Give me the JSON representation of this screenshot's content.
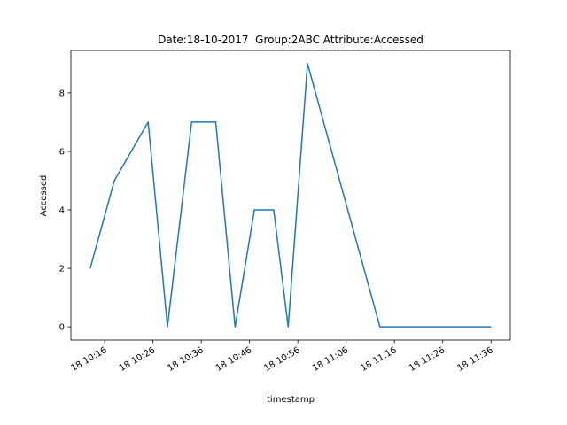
{
  "chart_data": {
    "type": "line",
    "title": "Date:18-10-2017  Group:2ABC Attribute:Accessed",
    "x_label": "timestamp",
    "y_label": "Accessed",
    "x": [
      "18 10:13",
      "18 10:18",
      "18 10:25",
      "18 10:29",
      "18 10:34",
      "18 10:39",
      "18 10:43",
      "18 10:47",
      "18 10:51",
      "18 10:54",
      "18 10:58",
      "18 11:13",
      "18 11:36"
    ],
    "values": [
      2,
      5,
      7,
      0,
      7,
      7,
      0,
      4,
      4,
      0,
      9,
      0,
      0
    ],
    "color": "#1f77b4",
    "xlim": [
      "18 10:09",
      "18 11:40"
    ],
    "xticks": [
      "18 10:16",
      "18 10:26",
      "18 10:36",
      "18 10:46",
      "18 10:56",
      "18 11:06",
      "18 11:16",
      "18 11:26",
      "18 11:36"
    ],
    "ylim": [
      -0.45,
      9.45
    ],
    "yticks": [
      0,
      2,
      4,
      6,
      8
    ],
    "grid": false
  }
}
